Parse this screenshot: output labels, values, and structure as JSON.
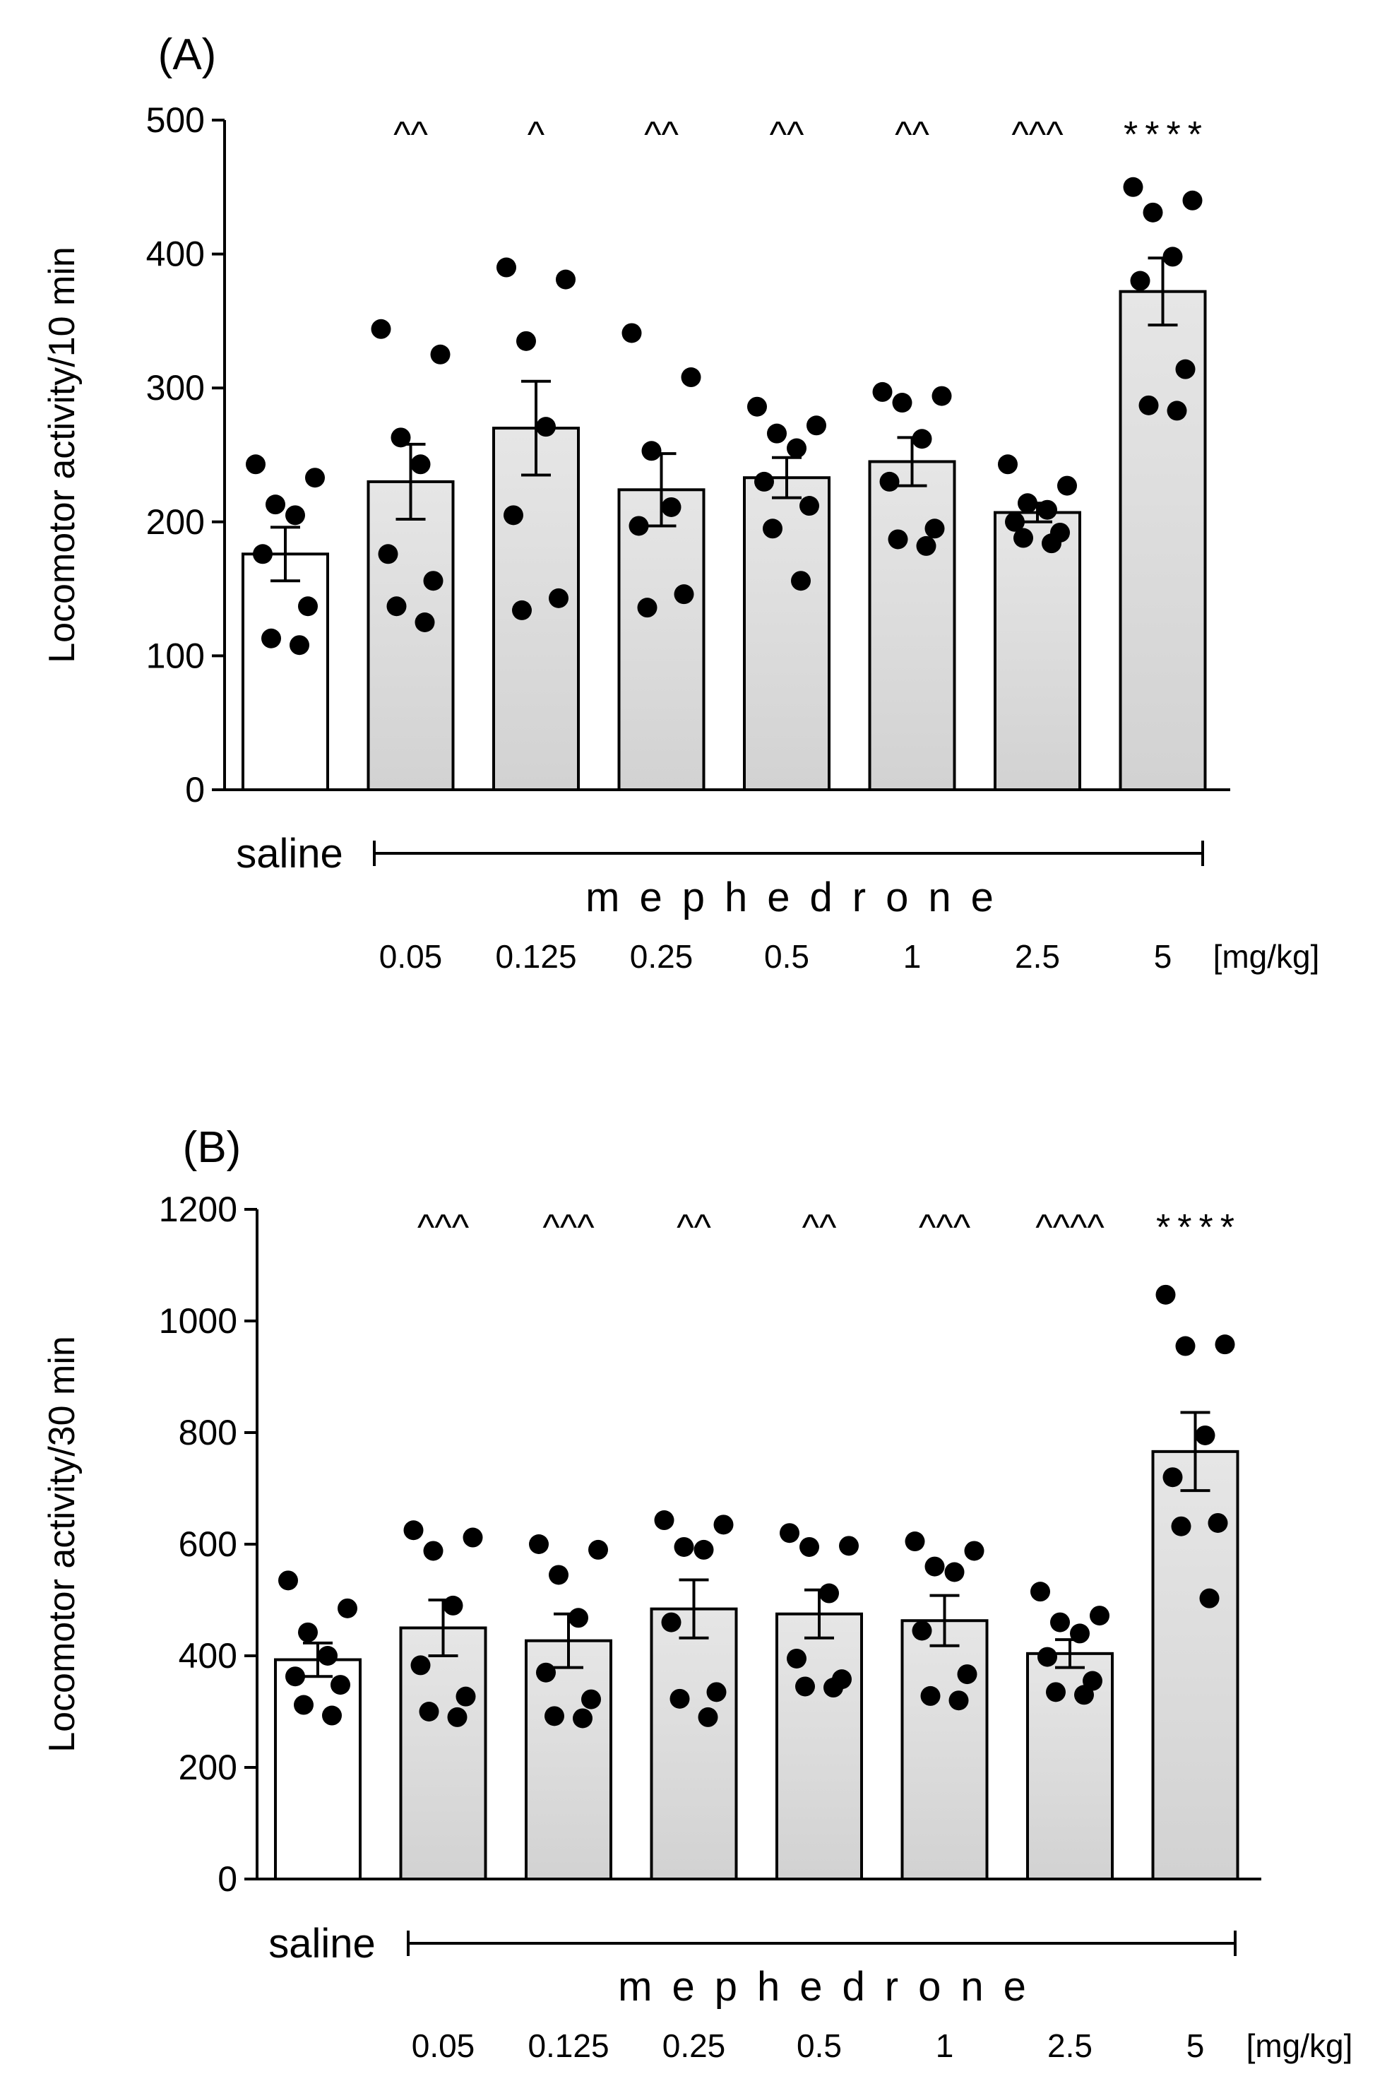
{
  "chart_data": [
    {
      "panel": "(A)",
      "type": "bar",
      "ylabel": "Locomotor activity/10 min",
      "ylim": [
        0,
        500
      ],
      "yticks": [
        0,
        100,
        200,
        300,
        400,
        500
      ],
      "control_label": "saline",
      "drug_label": "mephedrone",
      "unit_label": "[mg/kg]",
      "doses": [
        "0.05",
        "0.125",
        "0.25",
        "0.5",
        "1",
        "2.5",
        "5"
      ],
      "categories": [
        "saline",
        "0.05",
        "0.125",
        "0.25",
        "0.5",
        "1",
        "2.5",
        "5"
      ],
      "values": [
        176,
        230,
        270,
        224,
        233,
        245,
        207,
        372
      ],
      "sem": [
        20,
        28,
        35,
        27,
        15,
        18,
        7,
        25
      ],
      "significance": [
        "",
        "^^",
        "^",
        "^^",
        "^^",
        "^^",
        "^^^",
        "****"
      ],
      "points": [
        [
          243,
          233,
          213,
          205,
          176,
          137,
          113,
          108
        ],
        [
          344,
          325,
          263,
          243,
          176,
          156,
          137,
          125
        ],
        [
          390,
          381,
          335,
          271,
          205,
          143,
          134
        ],
        [
          341,
          308,
          253,
          211,
          197,
          146,
          136
        ],
        [
          286,
          272,
          266,
          255,
          230,
          212,
          195,
          156
        ],
        [
          297,
          294,
          289,
          262,
          230,
          195,
          187,
          182
        ],
        [
          243,
          227,
          214,
          209,
          200,
          192,
          188,
          184
        ],
        [
          450,
          440,
          431,
          398,
          380,
          314,
          287,
          283
        ]
      ]
    },
    {
      "panel": "(B)",
      "type": "bar",
      "ylabel": "Locomotor activity/30 min",
      "ylim": [
        0,
        1200
      ],
      "yticks": [
        0,
        200,
        400,
        600,
        800,
        1000,
        1200
      ],
      "control_label": "saline",
      "drug_label": "mephedrone",
      "unit_label": "[mg/kg]",
      "doses": [
        "0.05",
        "0.125",
        "0.25",
        "0.5",
        "1",
        "2.5",
        "5"
      ],
      "categories": [
        "saline",
        "0.05",
        "0.125",
        "0.25",
        "0.5",
        "1",
        "2.5",
        "5"
      ],
      "values": [
        393,
        450,
        427,
        484,
        475,
        463,
        404,
        766
      ],
      "sem": [
        30,
        50,
        48,
        52,
        43,
        45,
        25,
        70
      ],
      "significance": [
        "",
        "^^^",
        "^^^",
        "^^",
        "^^",
        "^^^",
        "^^^^",
        "****"
      ],
      "points": [
        [
          535,
          485,
          442,
          400,
          363,
          348,
          312,
          293
        ],
        [
          625,
          612,
          588,
          490,
          383,
          327,
          300,
          290
        ],
        [
          600,
          590,
          545,
          468,
          370,
          322,
          292,
          288
        ],
        [
          643,
          635,
          595,
          590,
          460,
          335,
          323,
          290
        ],
        [
          620,
          597,
          595,
          512,
          395,
          358,
          345,
          343
        ],
        [
          605,
          588,
          560,
          550,
          445,
          367,
          328,
          320
        ],
        [
          515,
          472,
          460,
          440,
          398,
          355,
          335,
          330
        ],
        [
          1047,
          958,
          955,
          795,
          720,
          638,
          632,
          503
        ]
      ]
    }
  ]
}
